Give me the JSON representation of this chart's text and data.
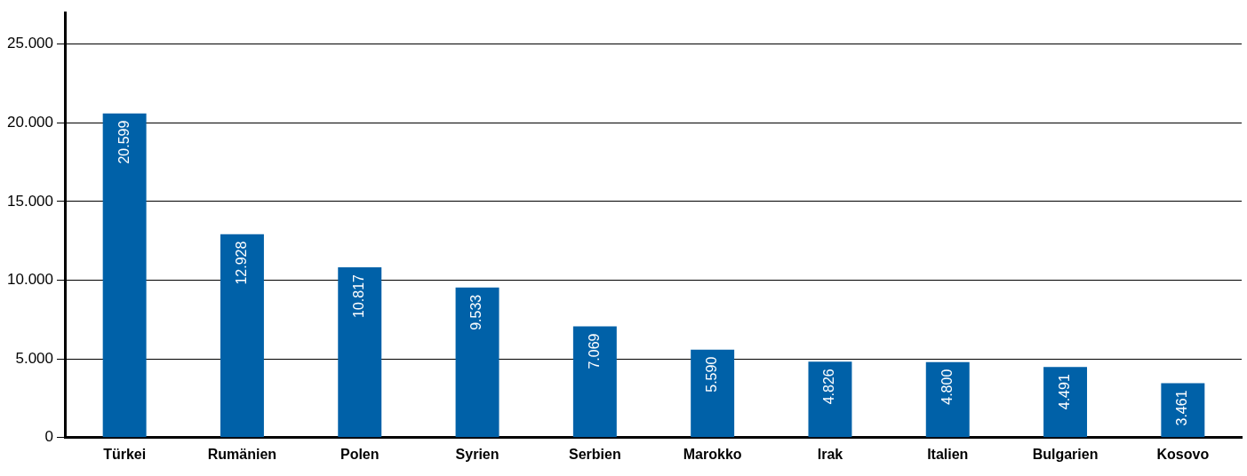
{
  "chart_data": {
    "type": "bar",
    "categories": [
      "Türkei",
      "Rumänien",
      "Polen",
      "Syrien",
      "Serbien",
      "Marokko",
      "Irak",
      "Italien",
      "Bulgarien",
      "Kosovo"
    ],
    "values": [
      20599,
      12928,
      10817,
      9533,
      7069,
      5590,
      4826,
      4800,
      4491,
      3461
    ],
    "value_labels": [
      "20.599",
      "12.928",
      "10.817",
      "9.533",
      "7.069",
      "5.590",
      "4.826",
      "4.800",
      "4.491",
      "3.461"
    ],
    "color": "#0061a8",
    "ylim": [
      0,
      27000
    ],
    "yticks": [
      {
        "value": 0,
        "label": "0"
      },
      {
        "value": 5000,
        "label": "5.000"
      },
      {
        "value": 10000,
        "label": "10.000"
      },
      {
        "value": 15000,
        "label": "15.000"
      },
      {
        "value": 20000,
        "label": "20.000"
      },
      {
        "value": 25000,
        "label": "25.000"
      }
    ],
    "grid": "y"
  }
}
